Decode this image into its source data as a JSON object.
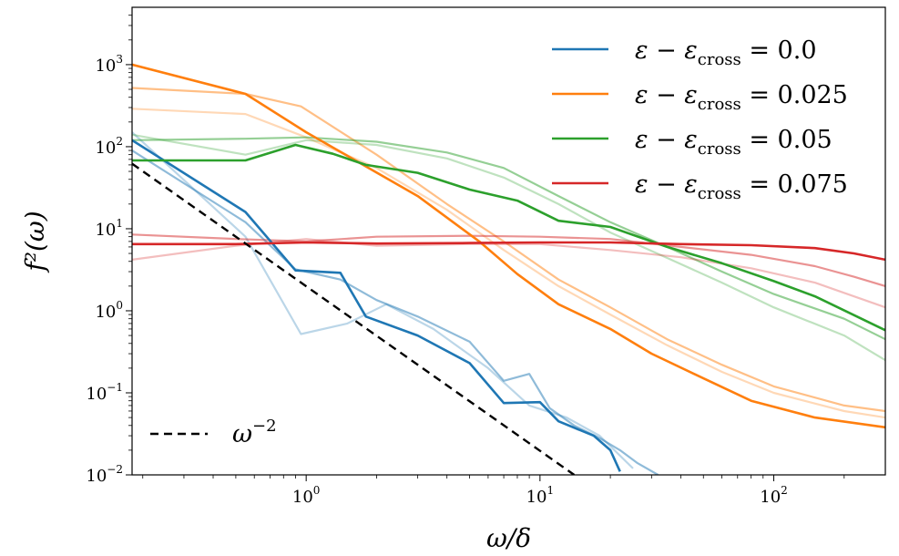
{
  "chart_data": {
    "type": "line",
    "xlabel": "ω/δ",
    "ylabel": "f²(ω)",
    "xscale": "log",
    "yscale": "log",
    "xlim": [
      0.18,
      300
    ],
    "ylim": [
      0.01,
      5000
    ],
    "x_ticks": [
      {
        "value": 1,
        "base": "10",
        "exp": "0"
      },
      {
        "value": 10,
        "base": "10",
        "exp": "1"
      },
      {
        "value": 100,
        "base": "10",
        "exp": "2"
      }
    ],
    "y_ticks": [
      {
        "value": 0.01,
        "base": "10",
        "exp": "−2"
      },
      {
        "value": 0.1,
        "base": "10",
        "exp": "−1"
      },
      {
        "value": 1,
        "base": "10",
        "exp": "0"
      },
      {
        "value": 10,
        "base": "10",
        "exp": "1"
      },
      {
        "value": 100,
        "base": "10",
        "exp": "2"
      },
      {
        "value": 1000,
        "base": "10",
        "exp": "3"
      }
    ],
    "legend_position": "top-right",
    "reference_line": {
      "label_base": "ω",
      "label_exp": "−2",
      "style": "dashed",
      "color": "#000000",
      "x": [
        0.18,
        14
      ],
      "y": [
        62,
        0.01
      ]
    },
    "series": [
      {
        "legend_main": "ε − ε",
        "legend_sub": "cross",
        "legend_value": " = 0.0",
        "color": "#1f77b4",
        "x": [
          0.18,
          0.55,
          0.9,
          1.4,
          1.8,
          3,
          5,
          7,
          10,
          12,
          17,
          20,
          22
        ],
        "y": [
          120,
          16,
          3.1,
          2.9,
          0.85,
          0.5,
          0.23,
          0.075,
          0.077,
          0.045,
          0.03,
          0.02,
          0.011
        ],
        "faded": [
          {
            "x": [
              0.18,
              0.55,
              0.9,
              1.4,
              2,
              3,
              5,
              7,
              9,
              11,
              14,
              18,
              22,
              26,
              32
            ],
            "y": [
              90,
              12,
              3.2,
              2.4,
              1.35,
              0.85,
              0.42,
              0.14,
              0.17,
              0.065,
              0.04,
              0.028,
              0.02,
              0.014,
              0.01
            ]
          },
          {
            "x": [
              0.18,
              0.55,
              0.95,
              1.5,
              2.2,
              3.5,
              6,
              9,
              13,
              18,
              25
            ],
            "y": [
              150,
              8,
              0.52,
              0.7,
              1.2,
              0.6,
              0.2,
              0.07,
              0.05,
              0.03,
              0.012
            ]
          }
        ]
      },
      {
        "legend_main": "ε − ε",
        "legend_sub": "cross",
        "legend_value": " = 0.025",
        "color": "#ff7f0e",
        "x": [
          0.18,
          0.55,
          1,
          3,
          5.5,
          8,
          12,
          20,
          30,
          50,
          80,
          150,
          300
        ],
        "y": [
          1000,
          440,
          150,
          25,
          7,
          2.8,
          1.2,
          0.6,
          0.3,
          0.15,
          0.08,
          0.05,
          0.038
        ],
        "faded": [
          {
            "x": [
              0.18,
              0.55,
              0.95,
              2,
              4,
              7,
              12,
              20,
              35,
              60,
              100,
              200,
              300
            ],
            "y": [
              520,
              440,
              310,
              80,
              20,
              7,
              2.4,
              1.1,
              0.45,
              0.22,
              0.12,
              0.07,
              0.06
            ]
          },
          {
            "x": [
              0.18,
              0.55,
              1,
              2,
              4,
              7,
              12,
              20,
              35,
              60,
              100,
              200,
              300
            ],
            "y": [
              290,
              250,
              130,
              55,
              17,
              5.5,
              2,
              0.9,
              0.38,
              0.18,
              0.1,
              0.06,
              0.05
            ]
          }
        ]
      },
      {
        "legend_main": "ε − ε",
        "legend_sub": "cross",
        "legend_value": " = 0.05",
        "color": "#2ca02c",
        "x": [
          0.18,
          0.55,
          0.9,
          1.3,
          1.8,
          3,
          5,
          8,
          12,
          20,
          35,
          60,
          100,
          150,
          300
        ],
        "y": [
          68,
          68,
          105,
          82,
          60,
          48,
          30,
          22,
          12.5,
          10.5,
          6,
          3.8,
          2.3,
          1.5,
          0.58
        ],
        "faded": [
          {
            "x": [
              0.18,
              0.55,
              1,
              2,
              4,
              7,
              12,
              20,
              35,
              60,
              100,
              200,
              300
            ],
            "y": [
              120,
              125,
              130,
              115,
              85,
              55,
              25,
              12,
              6,
              3,
              1.6,
              0.8,
              0.45
            ]
          },
          {
            "x": [
              0.18,
              0.55,
              1,
              2,
              4,
              7,
              12,
              20,
              35,
              60,
              100,
              200,
              300
            ],
            "y": [
              140,
              80,
              120,
              105,
              72,
              42,
              20,
              9,
              4.4,
              2.2,
              1.1,
              0.5,
              0.25
            ]
          }
        ]
      },
      {
        "legend_main": "ε − ε",
        "legend_sub": "cross",
        "legend_value": " = 0.075",
        "color": "#d62728",
        "x": [
          0.18,
          0.5,
          1,
          2,
          5,
          10,
          20,
          40,
          80,
          150,
          220,
          300
        ],
        "y": [
          6.5,
          6.5,
          6.8,
          6.6,
          6.7,
          6.8,
          6.8,
          6.5,
          6.3,
          5.8,
          5.0,
          4.2
        ],
        "faded": [
          {
            "x": [
              0.18,
              0.5,
              1,
              2,
              5,
              10,
              20,
              40,
              80,
              150,
              220,
              300
            ],
            "y": [
              8.5,
              7.5,
              7,
              8,
              8.2,
              8,
              7.5,
              6,
              4.8,
              3.5,
              2.6,
              2
            ]
          },
          {
            "x": [
              0.18,
              0.5,
              1,
              2,
              5,
              10,
              20,
              40,
              80,
              150,
              220,
              300
            ],
            "y": [
              4.2,
              6.2,
              7.5,
              6.2,
              6.5,
              6.5,
              5.5,
              4.5,
              3.3,
              2.2,
              1.5,
              1.1
            ]
          }
        ]
      }
    ]
  }
}
